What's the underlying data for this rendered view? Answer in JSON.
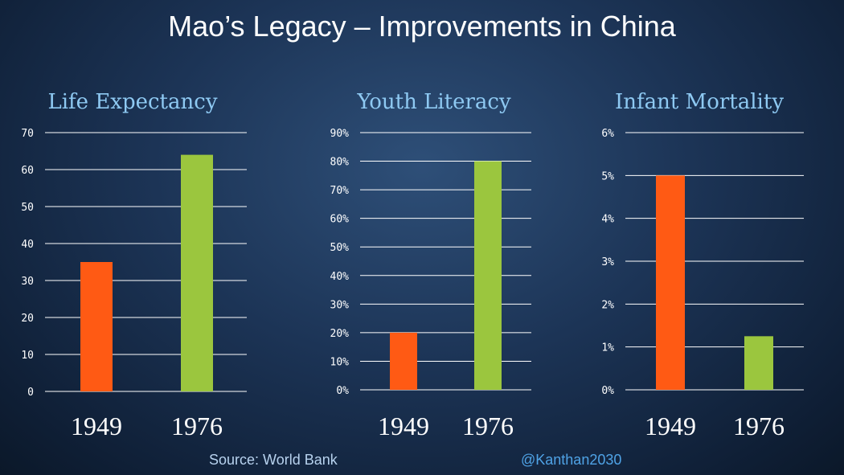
{
  "title": "Mao’s Legacy – Improvements in China",
  "source": "Source: World Bank",
  "handle": "@Kanthan2030",
  "colors": {
    "bar_1949": "#ff5a14",
    "bar_1976": "#9bc63e",
    "title_blue": "#8ec9f2"
  },
  "chart_data": [
    {
      "type": "bar",
      "title": "Life Expectancy",
      "categories": [
        "1949",
        "1976"
      ],
      "values": [
        35,
        64
      ],
      "ylim": [
        0,
        70
      ],
      "yticks": [
        "0",
        "10",
        "20",
        "30",
        "40",
        "50",
        "60",
        "70"
      ],
      "grid": true
    },
    {
      "type": "bar",
      "title": "Youth Literacy",
      "categories": [
        "1949",
        "1976"
      ],
      "values": [
        20,
        80
      ],
      "ylim": [
        0,
        90
      ],
      "yticks": [
        "0%",
        "10%",
        "20%",
        "30%",
        "40%",
        "50%",
        "60%",
        "70%",
        "80%",
        "90%"
      ],
      "grid": true
    },
    {
      "type": "bar",
      "title": "Infant Mortality",
      "categories": [
        "1949",
        "1976"
      ],
      "values": [
        5,
        1.25
      ],
      "ylim": [
        0,
        6
      ],
      "yticks": [
        "0%",
        "1%",
        "2%",
        "3%",
        "4%",
        "5%",
        "6%"
      ],
      "grid": true
    }
  ]
}
